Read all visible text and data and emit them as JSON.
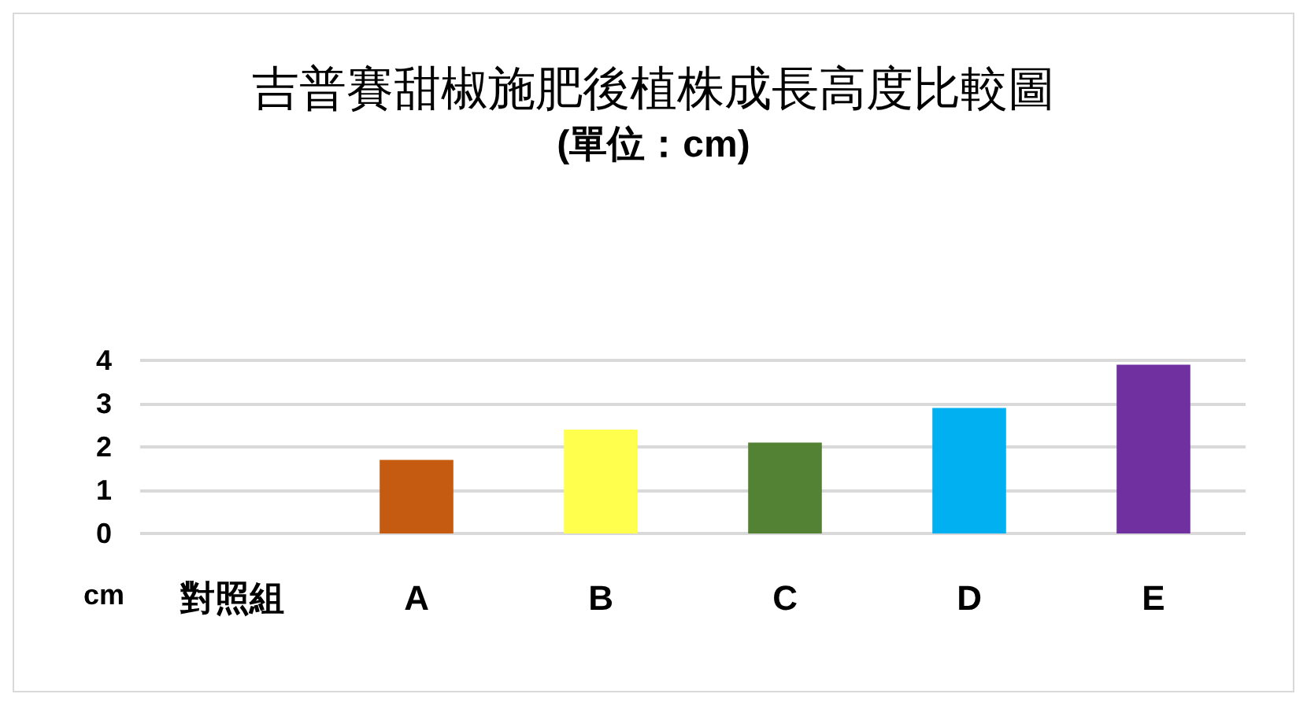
{
  "chart_data": {
    "type": "bar",
    "title": "吉普賽甜椒施肥後植株成長高度比較圖",
    "subtitle": "(單位：cm)",
    "ylabel": "cm",
    "categories": [
      "對照組",
      "A",
      "B",
      "C",
      "D",
      "E"
    ],
    "values": [
      0,
      1.7,
      2.4,
      2.1,
      2.9,
      3.9
    ],
    "colors": [
      "#c00000",
      "#c55a11",
      "#ffff4d",
      "#548235",
      "#00b0f0",
      "#7030a0"
    ],
    "ylim": [
      0,
      4
    ],
    "yticks": [
      0,
      1,
      2,
      3,
      4
    ],
    "grid": true
  }
}
